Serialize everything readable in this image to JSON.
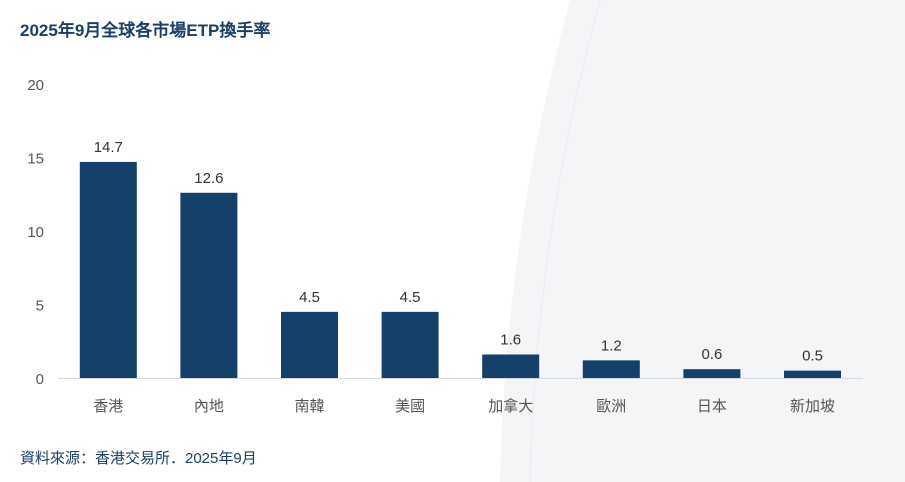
{
  "colors": {
    "bar": "#15406a",
    "title": "#1b3f66",
    "background_shape": "#f4f5f7"
  },
  "chart_data": {
    "type": "bar",
    "title": "2025年9月全球各市場ETP換手率",
    "categories": [
      "香港",
      "內地",
      "南韓",
      "美國",
      "加拿大",
      "歐洲",
      "日本",
      "新加坡"
    ],
    "values": [
      14.7,
      12.6,
      4.5,
      4.5,
      1.6,
      1.2,
      0.6,
      0.5
    ],
    "data_labels": [
      "14.7",
      "12.6",
      "4.5",
      "4.5",
      "1.6",
      "1.2",
      "0.6",
      "0.5"
    ],
    "ylim": [
      0,
      20
    ],
    "yticks": [
      0,
      5,
      10,
      15,
      20
    ],
    "xlabel": "",
    "ylabel": "",
    "grid": false,
    "legend": "none"
  },
  "source": "資料來源：香港交易所．2025年9月"
}
